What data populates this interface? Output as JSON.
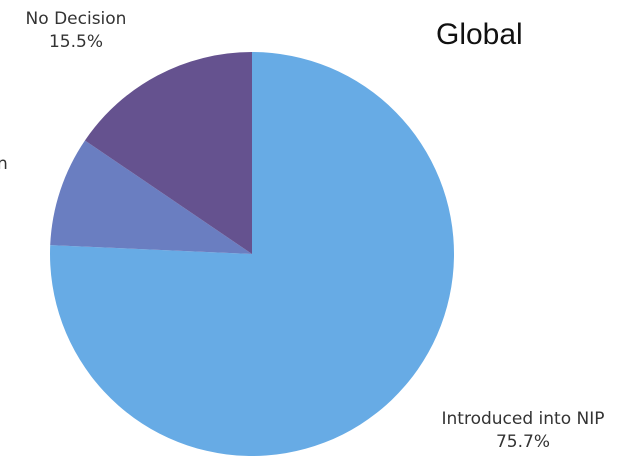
{
  "chart_data": {
    "type": "pie",
    "title": "Global",
    "slices": [
      {
        "label": "Introduced into NIP",
        "value": 75.7,
        "value_label": "75.7%",
        "color": "#67abe5"
      },
      {
        "label": "",
        "value": 8.8,
        "value_label": "",
        "color": "#6a7ec1"
      },
      {
        "label": "No Decision",
        "value": 15.5,
        "value_label": "15.5%",
        "color": "#65528f"
      }
    ],
    "start_at": "top",
    "direction": "clockwise",
    "partial_label_text": "n"
  }
}
